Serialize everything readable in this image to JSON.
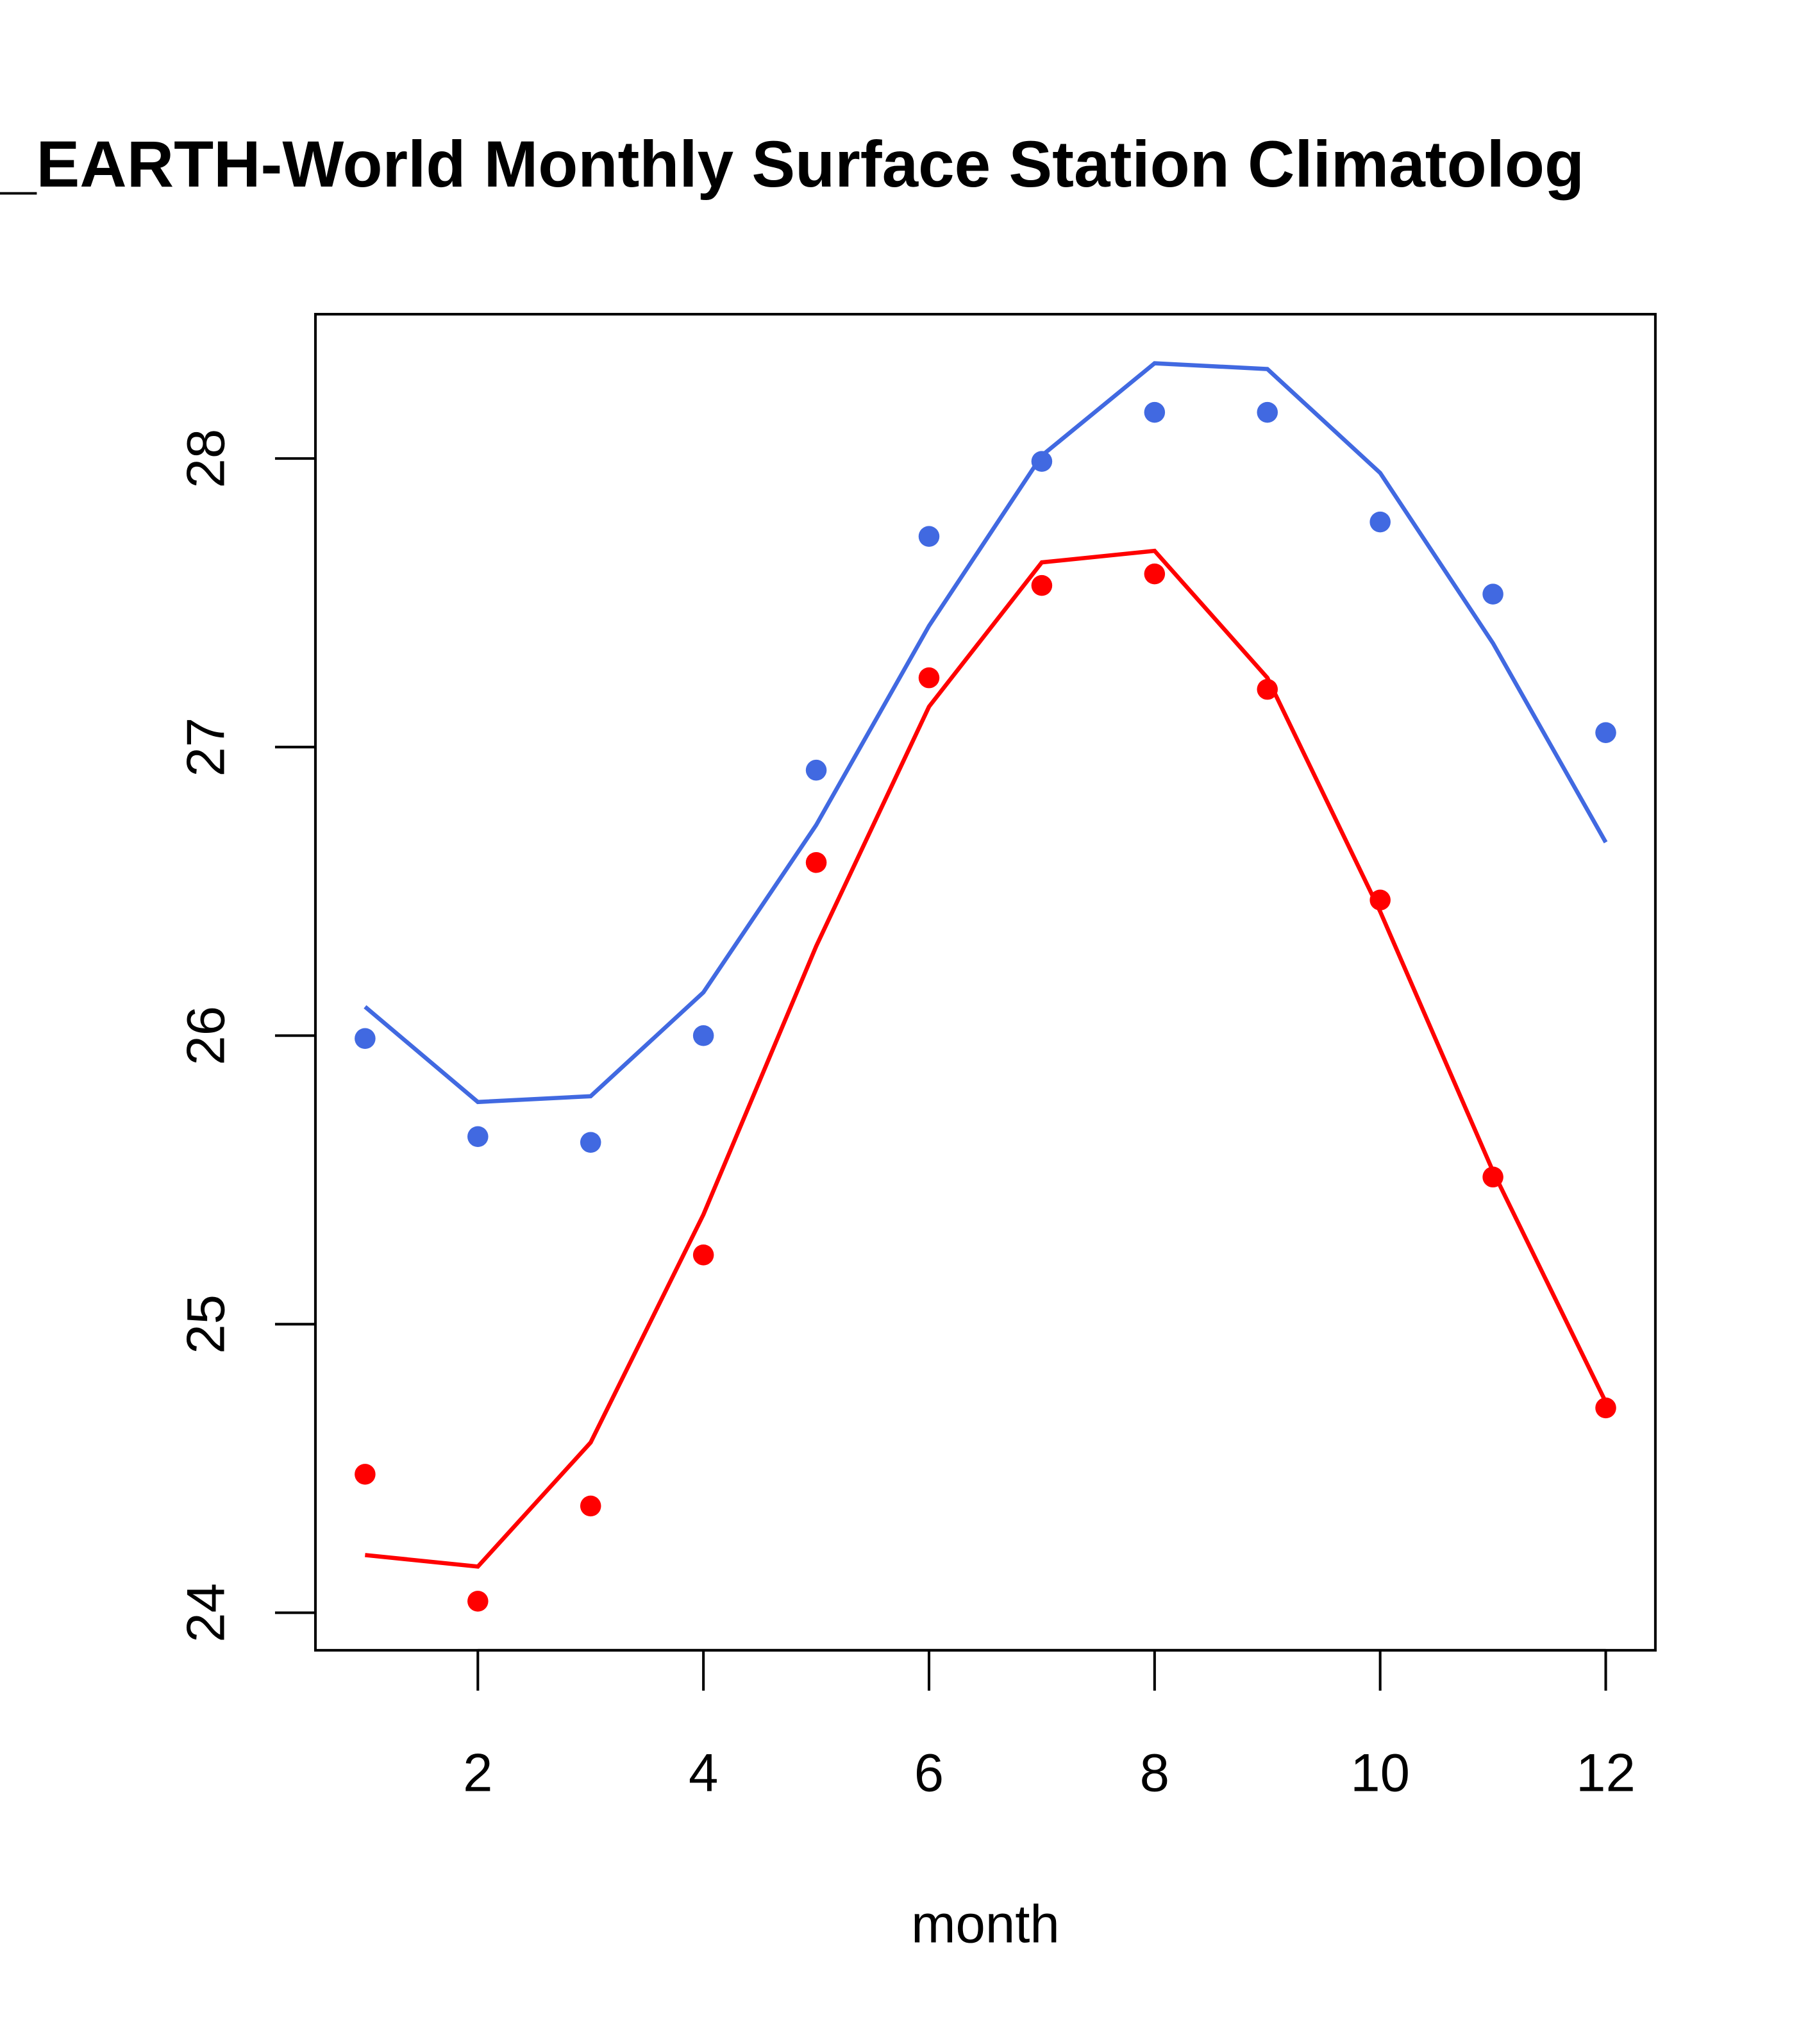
{
  "chart_data": {
    "type": "line",
    "title": "_EARTH-World Monthly Surface Station Climatolog",
    "xlabel": "month",
    "ylabel": "",
    "xlim": [
      0.56,
      12.44
    ],
    "ylim": [
      23.87,
      28.5
    ],
    "x_ticks": [
      2,
      4,
      6,
      8,
      10,
      12
    ],
    "x_tick_labels": [
      "2",
      "4",
      "6",
      "8",
      "10",
      "12"
    ],
    "y_ticks": [
      24,
      25,
      26,
      27,
      28
    ],
    "y_tick_labels": [
      "24",
      "25",
      "26",
      "27",
      "28"
    ],
    "grid": false,
    "x": [
      1,
      2,
      3,
      4,
      5,
      6,
      7,
      8,
      9,
      10,
      11,
      12
    ],
    "series": [
      {
        "name": "blue-points",
        "kind": "points",
        "color": "#4169E1",
        "values": [
          25.99,
          25.65,
          25.63,
          26.0,
          26.92,
          27.73,
          27.99,
          28.16,
          28.16,
          27.78,
          27.53,
          27.05
        ]
      },
      {
        "name": "blue-line",
        "kind": "line",
        "color": "#4169E1",
        "values": [
          26.1,
          25.77,
          25.79,
          26.15,
          26.73,
          27.42,
          28.01,
          28.33,
          28.31,
          27.95,
          27.36,
          26.67
        ]
      },
      {
        "name": "red-points",
        "kind": "points",
        "color": "#FF0000",
        "values": [
          24.48,
          24.04,
          24.37,
          25.24,
          26.6,
          27.24,
          27.56,
          27.6,
          27.2,
          26.47,
          25.51,
          24.71
        ]
      },
      {
        "name": "red-line",
        "kind": "line",
        "color": "#FF0000",
        "values": [
          24.2,
          24.16,
          24.59,
          25.38,
          26.31,
          27.14,
          27.64,
          27.68,
          27.24,
          26.43,
          25.53,
          24.73
        ]
      }
    ]
  }
}
